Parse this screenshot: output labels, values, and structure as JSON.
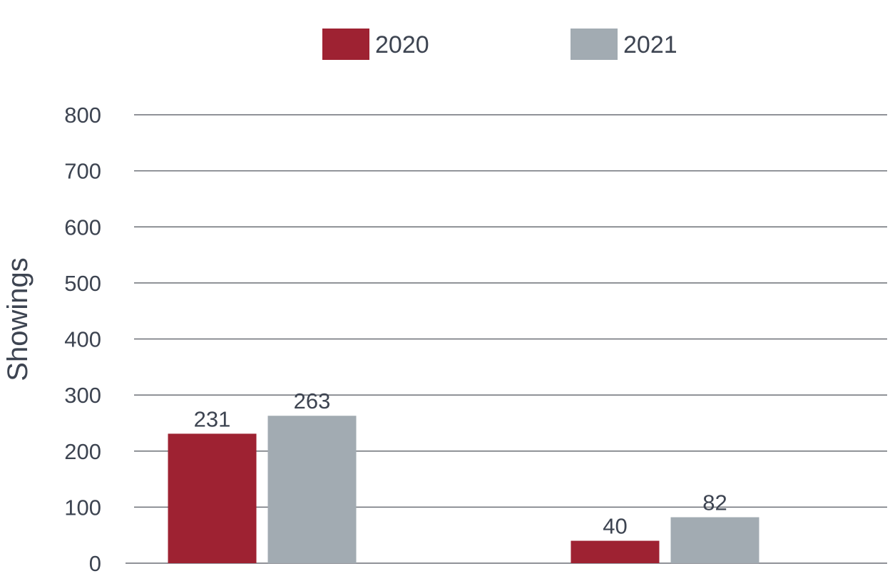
{
  "chart_data": {
    "type": "bar",
    "title": "",
    "categories": [
      "",
      ""
    ],
    "series": [
      {
        "name": "2020",
        "color": "#9e2232",
        "values": [
          231,
          40
        ]
      },
      {
        "name": "2021",
        "color": "#a2abb2",
        "values": [
          263,
          82
        ]
      }
    ],
    "xlabel": "",
    "ylabel": "Showings",
    "ylim": [
      0,
      800
    ],
    "yticks": [
      0,
      100,
      200,
      300,
      400,
      500,
      600,
      700,
      800
    ],
    "grid": true,
    "legend": "top-center",
    "data_labels": true
  }
}
